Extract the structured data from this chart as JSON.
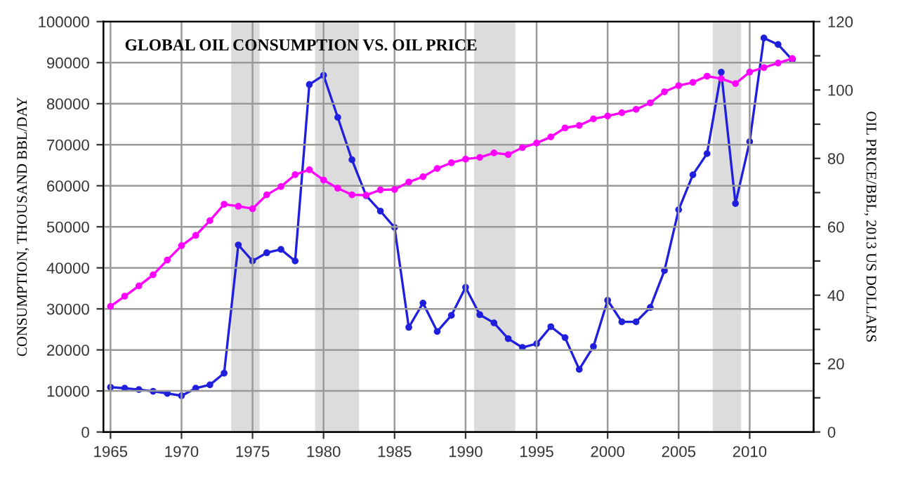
{
  "chart_data": {
    "type": "line",
    "title": "GLOBAL OIL CONSUMPTION VS. OIL PRICE",
    "ylabel": "CONSUMPTION, THOUSAND BBL/DAY",
    "y2label": "OIL PRICE/BBL, 2013 US DOLLARS",
    "x": [
      1965,
      1966,
      1967,
      1968,
      1969,
      1970,
      1971,
      1972,
      1973,
      1974,
      1975,
      1976,
      1977,
      1978,
      1979,
      1980,
      1981,
      1982,
      1983,
      1984,
      1985,
      1986,
      1987,
      1988,
      1989,
      1990,
      1991,
      1992,
      1993,
      1994,
      1995,
      1996,
      1997,
      1998,
      1999,
      2000,
      2001,
      2002,
      2003,
      2004,
      2005,
      2006,
      2007,
      2008,
      2009,
      2010,
      2011,
      2012,
      2013
    ],
    "series": [
      {
        "color": "#ff00ff",
        "values": [
          30600,
          33100,
          35600,
          38300,
          41900,
          45400,
          47900,
          51500,
          55500,
          55000,
          54400,
          57800,
          59800,
          62700,
          63900,
          61400,
          59400,
          57800,
          57700,
          59000,
          59100,
          60900,
          62200,
          64200,
          65600,
          66500,
          66900,
          68000,
          67600,
          69300,
          70400,
          71900,
          74100,
          74700,
          76300,
          77000,
          77800,
          78600,
          80200,
          82900,
          84400,
          85200,
          86700,
          86100,
          84900,
          87700,
          88800,
          89900,
          91000
        ]
      },
      {
        "color": "#1f1fdd",
        "axis": "y2",
        "values": [
          13.1,
          12.8,
          12.4,
          11.9,
          11.3,
          10.6,
          12.8,
          13.8,
          17.2,
          54.7,
          50.0,
          52.4,
          53.4,
          50.0,
          101.6,
          104.3,
          92.0,
          79.6,
          69.1,
          64.6,
          59.8,
          30.6,
          37.7,
          29.4,
          34.1,
          42.3,
          34.3,
          31.9,
          27.3,
          24.7,
          25.8,
          30.8,
          27.6,
          18.3,
          25.0,
          38.5,
          32.2,
          32.2,
          36.4,
          47.2,
          65.0,
          75.2,
          81.4,
          105.2,
          66.8,
          84.9,
          115.2,
          113.3,
          108.8
        ]
      }
    ],
    "xlim": [
      1964.5,
      2014.5
    ],
    "xticks": [
      1965,
      1970,
      1975,
      1980,
      1985,
      1990,
      1995,
      2000,
      2005,
      2010
    ],
    "ylim": [
      0,
      100000
    ],
    "yticks": [
      0,
      10000,
      20000,
      30000,
      40000,
      50000,
      60000,
      70000,
      80000,
      90000,
      100000
    ],
    "y2lim": [
      0,
      120
    ],
    "y2ticks": [
      0,
      {
        "value": 10,
        "label": null
      },
      20,
      {
        "value": 30,
        "label": null
      },
      40,
      {
        "value": 50,
        "label": null
      },
      60,
      {
        "value": 70,
        "label": null
      },
      80,
      {
        "value": 90,
        "label": null
      },
      100,
      {
        "value": 110,
        "label": null
      },
      120
    ],
    "bands": [
      {
        "axis": "x",
        "from": 1973.5,
        "to": 1975.5,
        "color": "#dcdcdc"
      },
      {
        "axis": "x",
        "from": 1979.4,
        "to": 1982.5,
        "color": "#dcdcdc"
      },
      {
        "axis": "x",
        "from": 1990.6,
        "to": 1993.5,
        "color": "#dcdcdc"
      },
      {
        "axis": "x",
        "from": 2007.4,
        "to": 2009.4,
        "color": "#dcdcdc"
      }
    ],
    "grid": true,
    "marker": "circle",
    "line_style": "solid",
    "legend": false
  }
}
